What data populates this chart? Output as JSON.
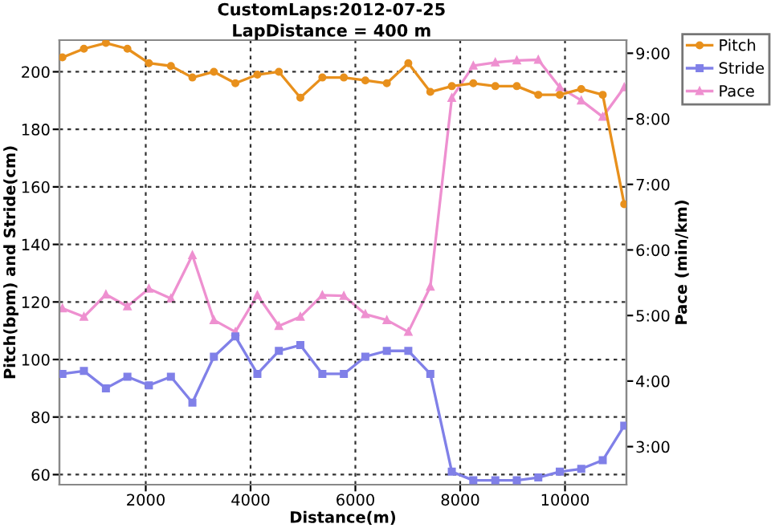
{
  "chart_data": {
    "type": "line",
    "title": "CustomLaps:2012-07-25",
    "subtitle": "LapDistance = 400 m",
    "xlabel": "Distance(m)",
    "ylabel": "Pitch(bpm) and Stride(cm)",
    "y2label": "Pace (min/km)",
    "x": [
      410,
      820,
      1240,
      1650,
      2060,
      2480,
      2890,
      3300,
      3710,
      4130,
      4540,
      4950,
      5370,
      5780,
      6190,
      6600,
      7010,
      7430,
      7840,
      8250,
      8670,
      9080,
      9490,
      9900,
      10310,
      10720,
      11130
    ],
    "series": [
      {
        "name": "Pitch",
        "color": "#e8901c",
        "marker": "circle",
        "values": [
          205,
          208,
          210,
          208,
          203,
          202,
          198,
          200,
          196,
          199,
          200,
          191,
          198,
          198,
          197,
          196,
          203,
          193,
          195,
          196,
          195,
          195,
          192,
          192,
          194,
          192,
          154
        ]
      },
      {
        "name": "Stride",
        "color": "#8080e8",
        "marker": "square",
        "values": [
          95,
          96,
          90,
          94,
          91,
          94,
          85,
          101,
          108,
          95,
          103,
          105,
          95,
          95,
          101,
          103,
          103,
          95,
          61,
          58,
          58,
          58,
          59,
          61,
          62,
          65,
          77
        ]
      },
      {
        "name": "Pace",
        "color": "#ee90d0",
        "marker": "triangle",
        "axis": "y2",
        "values": [
          5.11,
          4.98,
          5.32,
          5.14,
          5.41,
          5.26,
          5.92,
          4.93,
          4.75,
          5.31,
          4.84,
          4.98,
          5.31,
          5.3,
          5.02,
          4.93,
          4.75,
          5.44,
          8.32,
          8.81,
          8.86,
          8.89,
          8.9,
          8.48,
          8.28,
          8.03,
          8.48
        ]
      }
    ],
    "xlim": [
      353,
      11172
    ],
    "xticks": [
      2000,
      4000,
      6000,
      8000,
      10000
    ],
    "ylim": [
      56.5,
      211
    ],
    "yticks": [
      60,
      80,
      100,
      120,
      140,
      160,
      180,
      200
    ],
    "y2lim": [
      2.42,
      9.2
    ],
    "y2ticks": [
      {
        "value": 3,
        "label": "3:00"
      },
      {
        "value": 4,
        "label": "4:00"
      },
      {
        "value": 5,
        "label": "5:00"
      },
      {
        "value": 6,
        "label": "6:00"
      },
      {
        "value": 7,
        "label": "7:00"
      },
      {
        "value": 8,
        "label": "8:00"
      },
      {
        "value": 9,
        "label": "9:00"
      }
    ],
    "grid": true,
    "legend": "top right",
    "line_style": "solid"
  }
}
